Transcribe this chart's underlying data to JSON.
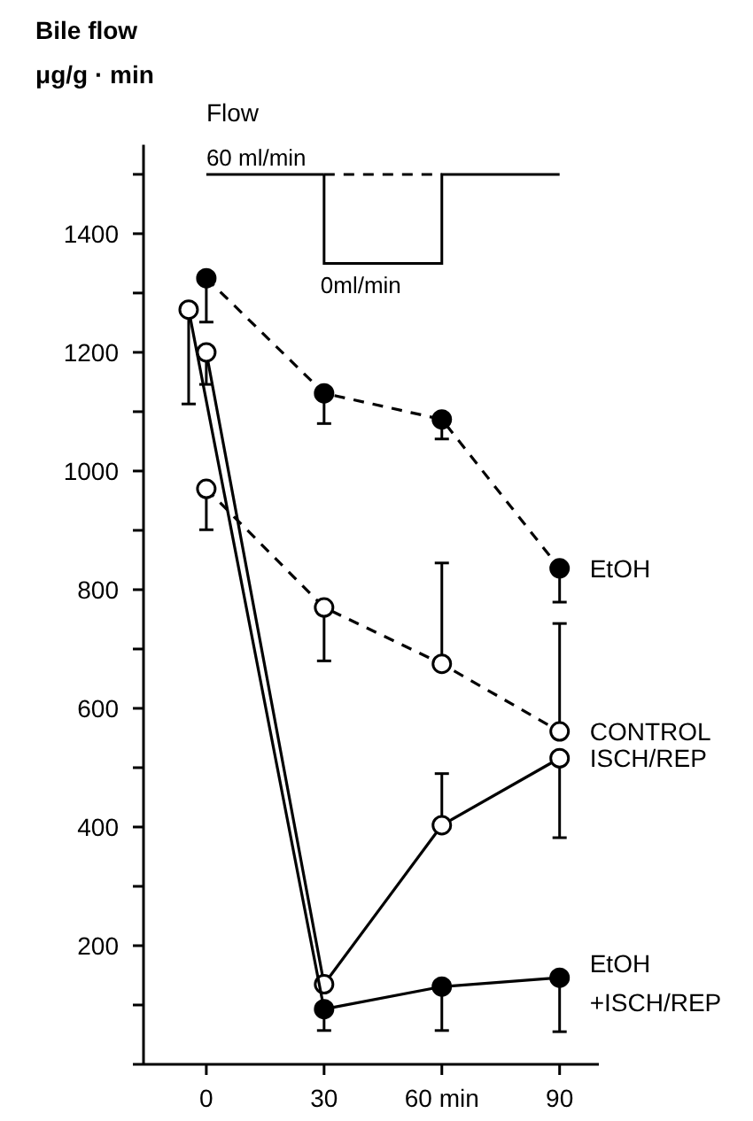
{
  "chart_data": {
    "type": "line",
    "ylabel": "Bile flow\nμg/g · min",
    "xlim": [
      -16,
      100
    ],
    "xticks": [
      0,
      30,
      {
        "value": 60,
        "label": "60 min"
      },
      90
    ],
    "ylim": [
      0,
      1550
    ],
    "yticks": [
      {
        "value": 0,
        "label": null
      },
      {
        "value": 100,
        "label": null
      },
      200,
      {
        "value": 300,
        "label": null
      },
      400,
      {
        "value": 500,
        "label": null
      },
      600,
      {
        "value": 700,
        "label": null
      },
      800,
      {
        "value": 900,
        "label": null
      },
      1000,
      {
        "value": 1100,
        "label": null
      },
      1200,
      {
        "value": 1300,
        "label": null
      },
      1400,
      {
        "value": 1500,
        "label": null
      }
    ],
    "grid": false,
    "marker": "circle",
    "annotations": [
      "Flow",
      "60 ml/min",
      "0ml/min"
    ],
    "series": [
      {
        "name": "EtOH",
        "color": "#000000",
        "colors": [
          "#000000",
          "#000000",
          "#000000",
          "#000000"
        ],
        "line_style": "dashed",
        "x": [
          0,
          30,
          60,
          90
        ],
        "values": [
          1325,
          1131,
          1087,
          836
        ],
        "errors": [
          [
            1251,
            1325
          ],
          [
            1080,
            1131
          ],
          [
            1054,
            1087
          ],
          [
            779,
            836
          ]
        ]
      },
      {
        "name": "CONTROL",
        "color": "#000000",
        "colors": [
          "#ffffff",
          "#ffffff",
          "#ffffff",
          "#ffffff"
        ],
        "line_style": "dashed",
        "x": [
          0,
          30,
          60,
          90
        ],
        "values": [
          970,
          770,
          675,
          561
        ],
        "errors": [
          [
            901,
            970
          ],
          [
            680,
            770
          ],
          [
            675,
            845
          ],
          [
            561,
            743
          ]
        ]
      },
      {
        "name": "ISCH/REP",
        "color": "#000000",
        "colors": [
          "#ffffff",
          "#ffffff",
          "#ffffff",
          "#ffffff"
        ],
        "line_style": "solid",
        "x": [
          0,
          30,
          60,
          90
        ],
        "values": [
          1200,
          135,
          403,
          516
        ],
        "errors": [
          [
            1146,
            1200
          ],
          null,
          [
            403,
            490
          ],
          [
            382,
            516
          ]
        ]
      },
      {
        "name": "EtOH\n+ISCH/REP",
        "color": "#000000",
        "colors": [
          "#ffffff",
          "#000000",
          "#000000",
          "#000000"
        ],
        "line_style": "solid",
        "x": [
          -4.5,
          30,
          60,
          90
        ],
        "values": [
          1272,
          93,
          131,
          146
        ],
        "errors": [
          [
            1113,
            1272
          ],
          [
            57,
            93
          ],
          [
            57,
            131
          ],
          [
            55,
            146
          ]
        ]
      }
    ]
  }
}
